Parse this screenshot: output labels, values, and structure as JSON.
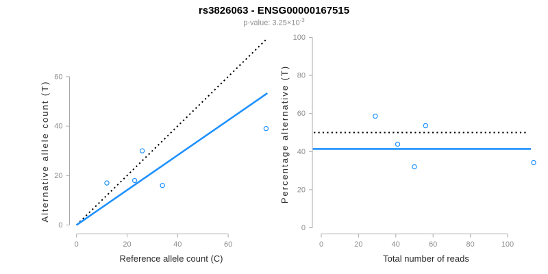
{
  "header": {
    "title": "rs3826063 - ENSG00000167515",
    "p_value": {
      "label": "p-value: ",
      "mantissa": "3.25",
      "times": "×10",
      "exponent": "-3"
    }
  },
  "colors": {
    "accent_blue": "#1E90FF",
    "line_black": "#000000",
    "tick_label_gray": "#8c8c8c",
    "axis_line_gray": "#a9a9a9",
    "axis_title_gray": "#2b2b2b",
    "subtitle_gray": "#8c8c8c"
  },
  "chart_data": [
    {
      "type": "scatter",
      "panel": "left",
      "xlabel": "Reference allele count (C)",
      "ylabel": "Alternative allele count (T)",
      "xlim": [
        0,
        76
      ],
      "ylim": [
        0,
        76
      ],
      "xticks": [
        0,
        20,
        40,
        60
      ],
      "yticks": [
        0,
        20,
        40,
        60
      ],
      "grid": false,
      "marker": {
        "shape": "open-circle",
        "color": "#1E90FF"
      },
      "points": [
        {
          "x": 12,
          "y": 17
        },
        {
          "x": 23,
          "y": 18
        },
        {
          "x": 26,
          "y": 30
        },
        {
          "x": 34,
          "y": 16
        },
        {
          "x": 75,
          "y": 39
        }
      ],
      "lines": [
        {
          "name": "identity-line",
          "style": "dotted",
          "color": "#000000",
          "x1": 0,
          "y1": 0,
          "x2": 75.5,
          "y2": 75.5
        },
        {
          "name": "fitted-ratio-line",
          "style": "solid",
          "color": "#1E90FF",
          "x1": 0,
          "y1": 0,
          "x2": 75.5,
          "y2": 53.3
        }
      ]
    },
    {
      "type": "scatter",
      "panel": "right",
      "xlabel": "Total number of reads",
      "ylabel": "Percentage alternative (T)",
      "xlim": [
        0,
        118
      ],
      "ylim": [
        0,
        100
      ],
      "xticks": [
        0,
        20,
        40,
        60,
        80,
        100
      ],
      "yticks": [
        0,
        20,
        40,
        60,
        80,
        100
      ],
      "grid": false,
      "marker": {
        "shape": "open-circle",
        "color": "#1E90FF"
      },
      "points": [
        {
          "x": 29,
          "y": 58.6
        },
        {
          "x": 41,
          "y": 43.9
        },
        {
          "x": 50,
          "y": 32
        },
        {
          "x": 56,
          "y": 53.6
        },
        {
          "x": 114,
          "y": 34.2
        }
      ],
      "lines": [
        {
          "name": "expected-50pct-line",
          "style": "dotted",
          "color": "#000000",
          "x1": -4,
          "y1": 50,
          "x2": 110.5,
          "y2": 50
        },
        {
          "name": "mean-alt-pct-line",
          "style": "solid",
          "color": "#1E90FF",
          "x1": -4.5,
          "y1": 41.4,
          "x2": 112.5,
          "y2": 41.4
        }
      ]
    }
  ]
}
